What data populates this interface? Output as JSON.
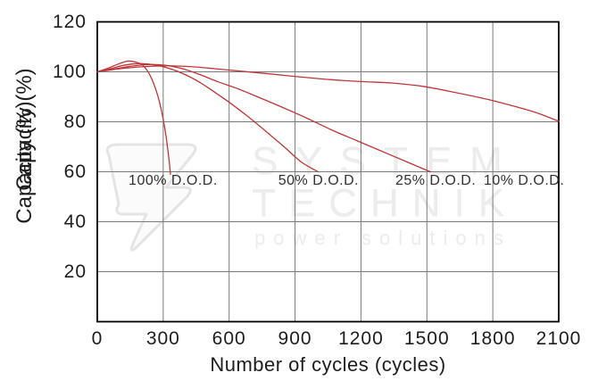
{
  "watermark": {
    "word1": "SYSTEM",
    "word2": "TECHNIK",
    "word3": "power solutions",
    "logo": "lightning-bolt"
  },
  "colors": {
    "curve": "#c23537",
    "grid": "#7a7a7a",
    "axis": "#000000",
    "text": "#1d1d1d",
    "watermark": "#ececec"
  },
  "chart_data": {
    "type": "line",
    "title": "",
    "xlabel": "Number of cycles (cycles)",
    "ylabel": "Capacity (%)",
    "ylabel_note": "axis label is printed twice, overlapping",
    "xlim": [
      0,
      2100
    ],
    "ylim": [
      0,
      120
    ],
    "xticks": [
      0,
      300,
      600,
      900,
      1200,
      1500,
      1800,
      2100
    ],
    "yticks": [
      20,
      40,
      60,
      80,
      100,
      120
    ],
    "grid": true,
    "legend_position": "none",
    "series": [
      {
        "name": "100% D.O.D.",
        "points": [
          [
            0,
            100
          ],
          [
            45,
            101.3
          ],
          [
            95,
            103.1
          ],
          [
            140,
            104.3
          ],
          [
            180,
            103.8
          ],
          [
            205,
            102.7
          ],
          [
            225,
            100.8
          ],
          [
            240,
            98.6
          ],
          [
            258,
            95
          ],
          [
            275,
            90.5
          ],
          [
            292,
            84.5
          ],
          [
            308,
            77
          ],
          [
            320,
            69.5
          ],
          [
            328,
            63.5
          ],
          [
            333,
            59
          ]
        ]
      },
      {
        "name": "50% D.O.D.",
        "points": [
          [
            0,
            100
          ],
          [
            60,
            101.2
          ],
          [
            120,
            102.6
          ],
          [
            190,
            103.3
          ],
          [
            260,
            102.8
          ],
          [
            330,
            101.3
          ],
          [
            400,
            98.9
          ],
          [
            470,
            95.6
          ],
          [
            540,
            91.5
          ],
          [
            610,
            87.2
          ],
          [
            690,
            81.8
          ],
          [
            770,
            76
          ],
          [
            850,
            70
          ],
          [
            930,
            63.8
          ],
          [
            1005,
            60
          ]
        ]
      },
      {
        "name": "25% D.O.D.",
        "points": [
          [
            0,
            100
          ],
          [
            70,
            101
          ],
          [
            150,
            102.2
          ],
          [
            230,
            102.9
          ],
          [
            310,
            102.6
          ],
          [
            390,
            101.2
          ],
          [
            470,
            98.8
          ],
          [
            550,
            96
          ],
          [
            640,
            93.2
          ],
          [
            740,
            89.6
          ],
          [
            850,
            85.5
          ],
          [
            960,
            81.2
          ],
          [
            1070,
            76.6
          ],
          [
            1180,
            72.5
          ],
          [
            1290,
            68.4
          ],
          [
            1400,
            64.3
          ],
          [
            1515,
            60
          ]
        ]
      },
      {
        "name": "10% D.O.D.",
        "points": [
          [
            0,
            100
          ],
          [
            90,
            101.1
          ],
          [
            200,
            102
          ],
          [
            310,
            102.4
          ],
          [
            420,
            102.1
          ],
          [
            530,
            101.3
          ],
          [
            650,
            100.3
          ],
          [
            780,
            99.2
          ],
          [
            920,
            98
          ],
          [
            1060,
            96.9
          ],
          [
            1200,
            96.1
          ],
          [
            1344,
            95.5
          ],
          [
            1480,
            94.2
          ],
          [
            1620,
            91.9
          ],
          [
            1750,
            89.5
          ],
          [
            1870,
            86.9
          ],
          [
            1990,
            83.9
          ],
          [
            2100,
            80.2
          ]
        ]
      }
    ],
    "annotations": [
      {
        "label": "100% D.O.D.",
        "x": 345,
        "y": 56.2
      },
      {
        "label": "50% D.O.D.",
        "x": 1007,
        "y": 56.2
      },
      {
        "label": "25% D.O.D.",
        "x": 1540,
        "y": 56.2
      },
      {
        "label": "10% D.O.D.",
        "x": 1942,
        "y": 56.2
      }
    ]
  }
}
